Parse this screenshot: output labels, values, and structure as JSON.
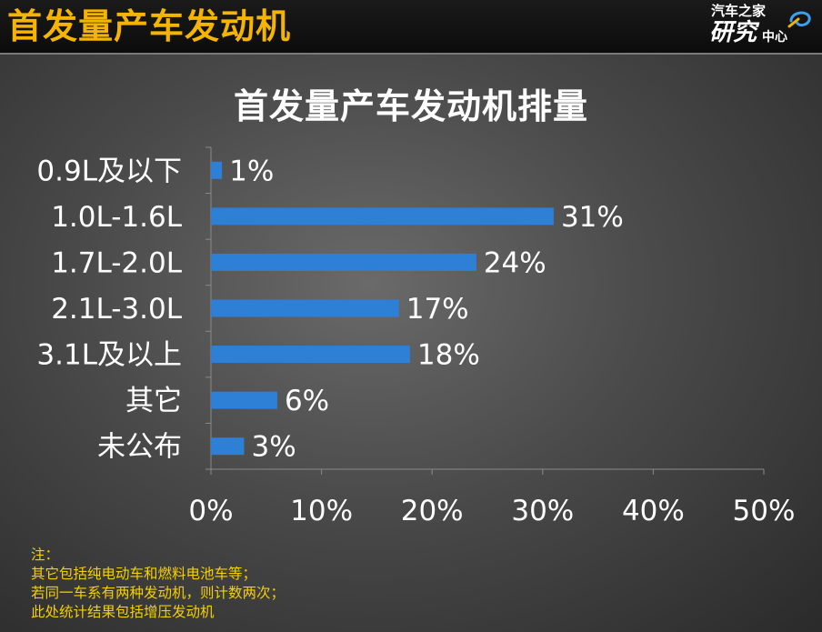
{
  "header": {
    "title": "首发量产车发动机",
    "logo": {
      "top": "汽车之家",
      "big": "研究",
      "small": "中心"
    }
  },
  "chart_data": {
    "type": "bar",
    "orientation": "horizontal",
    "title": "首发量产车发动机排量",
    "categories": [
      "0.9L及以下",
      "1.0L-1.6L",
      "1.7L-2.0L",
      "2.1L-3.0L",
      "3.1L及以上",
      "其它",
      "未公布"
    ],
    "values": [
      1,
      31,
      24,
      17,
      18,
      6,
      3
    ],
    "data_labels": [
      "1%",
      "31%",
      "24%",
      "17%",
      "18%",
      "6%",
      "3%"
    ],
    "x_ticks": [
      "0%",
      "10%",
      "20%",
      "30%",
      "40%",
      "50%"
    ],
    "xlim": [
      0,
      50
    ],
    "grid": false,
    "bar_color": "#2e7fd6"
  },
  "notes": [
    "注：",
    "其它包括纯电动车和燃料电池车等；",
    "若同一车系有两种发动机，则计数两次；",
    "此处统计结果包括增压发动机"
  ]
}
